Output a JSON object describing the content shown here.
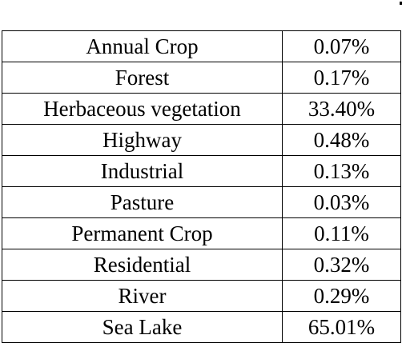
{
  "table": {
    "rows": [
      {
        "name": "Annual Crop",
        "value": "0.07%"
      },
      {
        "name": "Forest",
        "value": "0.17%"
      },
      {
        "name": "Herbaceous vegetation",
        "value": "33.40%"
      },
      {
        "name": "Highway",
        "value": "0.48%"
      },
      {
        "name": "Industrial",
        "value": "0.13%"
      },
      {
        "name": "Pasture",
        "value": "0.03%"
      },
      {
        "name": "Permanent Crop",
        "value": "0.11%"
      },
      {
        "name": "Residential",
        "value": "0.32%"
      },
      {
        "name": "River",
        "value": "0.29%"
      },
      {
        "name": "Sea Lake",
        "value": "65.01%"
      }
    ]
  }
}
